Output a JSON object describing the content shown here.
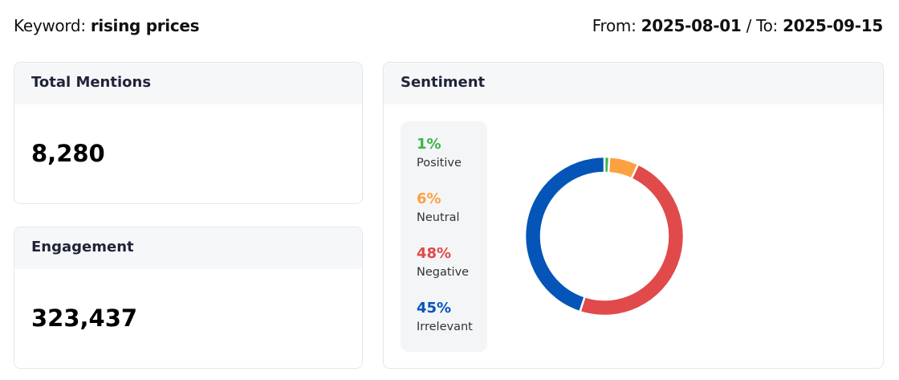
{
  "header": {
    "keyword_label": "Keyword:",
    "keyword": "rising prices",
    "from_label": "From:",
    "from": "2025-08-01",
    "to_label": "/ To:",
    "to": "2025-09-15"
  },
  "total_mentions": {
    "title": "Total Mentions",
    "value": "8,280"
  },
  "engagement": {
    "title": "Engagement",
    "value": "323,437"
  },
  "sentiment": {
    "title": "Sentiment"
  },
  "chart_data": {
    "type": "pie",
    "variant": "donut",
    "categories": [
      "Positive",
      "Neutral",
      "Negative",
      "Irrelevant"
    ],
    "values": [
      1,
      6,
      48,
      45
    ],
    "labels": [
      "1%",
      "6%",
      "48%",
      "45%"
    ],
    "colors": [
      "#3cb44b",
      "#fca140",
      "#e04a4a",
      "#0555b8"
    ],
    "legend": "left"
  }
}
